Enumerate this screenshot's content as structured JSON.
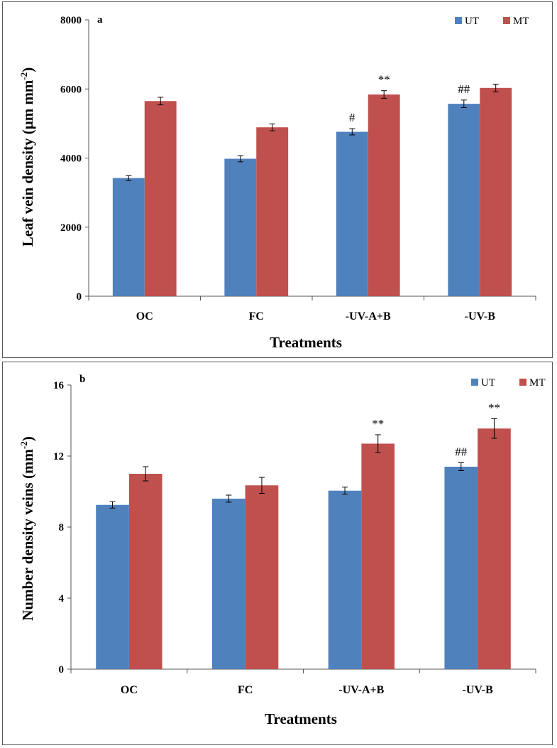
{
  "chart_data": [
    {
      "type": "bar",
      "panel_label": "a",
      "categories": [
        "OC",
        "FC",
        "-UV-A+B",
        "-UV-B"
      ],
      "series": [
        {
          "name": "UT",
          "color": "#4f81bd",
          "values": [
            3420,
            3980,
            4760,
            5570
          ],
          "errors": [
            70,
            90,
            90,
            110
          ]
        },
        {
          "name": "MT",
          "color": "#c0504d",
          "values": [
            5650,
            4890,
            5840,
            6030
          ],
          "errors": [
            110,
            100,
            110,
            110
          ]
        }
      ],
      "annotations": [
        {
          "category": 2,
          "series": 0,
          "text": "#"
        },
        {
          "category": 2,
          "series": 1,
          "text": "**"
        },
        {
          "category": 3,
          "series": 0,
          "text": "##"
        }
      ],
      "xlabel": "Treatments",
      "ylabel_main": "Leaf  vein  density (μm mm",
      "ylabel_sup": "-2",
      "ylabel_close": ")",
      "ylim": [
        0,
        8000
      ],
      "yticks": [
        0,
        2000,
        4000,
        6000,
        8000
      ],
      "legend_position": "top-right"
    },
    {
      "type": "bar",
      "panel_label": "b",
      "categories": [
        "OC",
        "FC",
        "-UV-A+B",
        "-UV-B"
      ],
      "series": [
        {
          "name": "UT",
          "color": "#4f81bd",
          "values": [
            9.25,
            9.6,
            10.05,
            11.4
          ],
          "errors": [
            0.18,
            0.2,
            0.2,
            0.22
          ]
        },
        {
          "name": "MT",
          "color": "#c0504d",
          "values": [
            11.0,
            10.35,
            12.7,
            13.55
          ],
          "errors": [
            0.4,
            0.45,
            0.5,
            0.55
          ]
        }
      ],
      "annotations": [
        {
          "category": 2,
          "series": 1,
          "text": "**"
        },
        {
          "category": 3,
          "series": 0,
          "text": "##"
        },
        {
          "category": 3,
          "series": 1,
          "text": "**"
        }
      ],
      "xlabel": "Treatments",
      "ylabel_main": "Number density veins (mm",
      "ylabel_sup": "-2",
      "ylabel_close": ")",
      "ylim": [
        0,
        16
      ],
      "yticks": [
        0,
        4,
        8,
        12,
        16
      ],
      "legend_position": "top-right"
    }
  ]
}
